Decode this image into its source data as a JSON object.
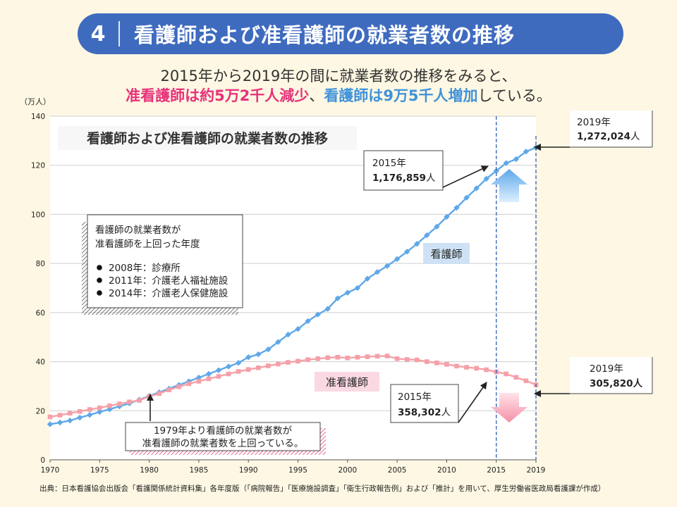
{
  "header": {
    "number": "4",
    "title": "看護師および准看護師の就業者数の推移"
  },
  "lead": {
    "line1": "2015年から2019年の間に就業者数の推移をみると、",
    "line2_a": "准看護師は約",
    "line2_b": "5万2千人減少",
    "line2_c": "、",
    "line2_d": "看護師は",
    "line2_e": "9万5千人増加",
    "line2_f": "している。"
  },
  "colors": {
    "accent": "#3f6bbf",
    "nurse": "#5fa8e8",
    "assistant_nurse": "#f5a0a8",
    "increase_pink": "#e8317a",
    "increase_blue": "#3f92d9"
  },
  "chart_data": {
    "type": "line",
    "title": "看護師および准看護師の就業者数の推移",
    "unit_label": "（万人）",
    "xlim": [
      1970,
      2019
    ],
    "ylim": [
      0,
      140
    ],
    "x_ticks": [
      1970,
      1975,
      1980,
      1985,
      1990,
      1995,
      2000,
      2005,
      2010,
      2015,
      2019
    ],
    "x_tick_labels": [
      "1970",
      "1975",
      "1980",
      "1985",
      "1990",
      "1995",
      "2000",
      "2005",
      "2010",
      "2015",
      "2019"
    ],
    "y_ticks": [
      0,
      20,
      40,
      60,
      80,
      100,
      120,
      140
    ],
    "y_tick_labels": [
      "0",
      "20",
      "40",
      "60",
      "80",
      "100",
      "120",
      "140"
    ],
    "grid": "horizontal",
    "x": [
      1970,
      1971,
      1972,
      1973,
      1974,
      1975,
      1976,
      1977,
      1978,
      1979,
      1980,
      1981,
      1982,
      1983,
      1984,
      1985,
      1986,
      1987,
      1988,
      1989,
      1990,
      1991,
      1992,
      1993,
      1994,
      1995,
      1996,
      1997,
      1998,
      1999,
      2000,
      2001,
      2002,
      2003,
      2004,
      2005,
      2006,
      2007,
      2008,
      2009,
      2010,
      2011,
      2012,
      2013,
      2014,
      2015,
      2016,
      2017,
      2018,
      2019
    ],
    "series": [
      {
        "name": "看護師",
        "marker": "diamond",
        "values": [
          14.5,
          15.2,
          16.0,
          17.2,
          18.3,
          19.5,
          20.6,
          21.8,
          23.0,
          24.5,
          26.0,
          27.5,
          29.0,
          30.5,
          32.0,
          33.5,
          35.0,
          36.5,
          38.0,
          39.5,
          41.8,
          43.0,
          45.0,
          48.0,
          51.0,
          53.3,
          56.5,
          59.2,
          61.5,
          65.8,
          68.1,
          70.0,
          73.8,
          76.5,
          79.0,
          81.8,
          84.8,
          88.0,
          91.5,
          95.0,
          99.0,
          102.7,
          106.8,
          110.6,
          114.5,
          117.7,
          120.9,
          122.5,
          125.6,
          127.2
        ]
      },
      {
        "name": "准看護師",
        "marker": "square",
        "values": [
          17.5,
          18.2,
          19.0,
          19.7,
          20.5,
          21.2,
          22.0,
          22.8,
          23.6,
          24.2,
          25.8,
          27.0,
          28.5,
          29.8,
          31.0,
          32.0,
          33.0,
          34.0,
          35.0,
          36.0,
          36.8,
          37.5,
          38.3,
          39.0,
          39.7,
          40.2,
          40.8,
          41.2,
          41.6,
          41.8,
          41.5,
          41.8,
          42.0,
          42.2,
          42.3,
          41.2,
          40.9,
          40.7,
          40.0,
          39.5,
          38.9,
          38.2,
          37.7,
          37.3,
          36.7,
          35.8,
          35.0,
          33.6,
          32.2,
          30.6
        ]
      }
    ],
    "series_labels": {
      "nurse": "看護師",
      "assistant_nurse": "准看護師"
    },
    "annotations": {
      "nurse_2015_year": "2015年",
      "nurse_2015_value": "1,176,859",
      "nurse_2019_year": "2019年",
      "nurse_2019_value": "1,272,024",
      "asst_2015_year": "2015年",
      "asst_2015_value": "358,302",
      "asst_2019_year": "2019年",
      "asst_2019_value": "305,820",
      "unit_person": "人",
      "cross_note_line1": "1979年より看護師の就業者数が",
      "cross_note_line2": "准看護師の就業者数を上回っている。",
      "years_box_title_1": "看護師の就業者数が",
      "years_box_title_2": "准看護師を上回った年度",
      "years_box_items": [
        "2008年：診療所",
        "2011年：介護老人福祉施設",
        "2014年：介護老人保健施設"
      ]
    }
  },
  "source": "出典：日本看護協会出版会「看護関係統計資料集」各年度版（「病院報告」「医療施設調査」「衛生行政報告例」および「推計」を用いて、厚生労働省医政局看護課が作成）"
}
